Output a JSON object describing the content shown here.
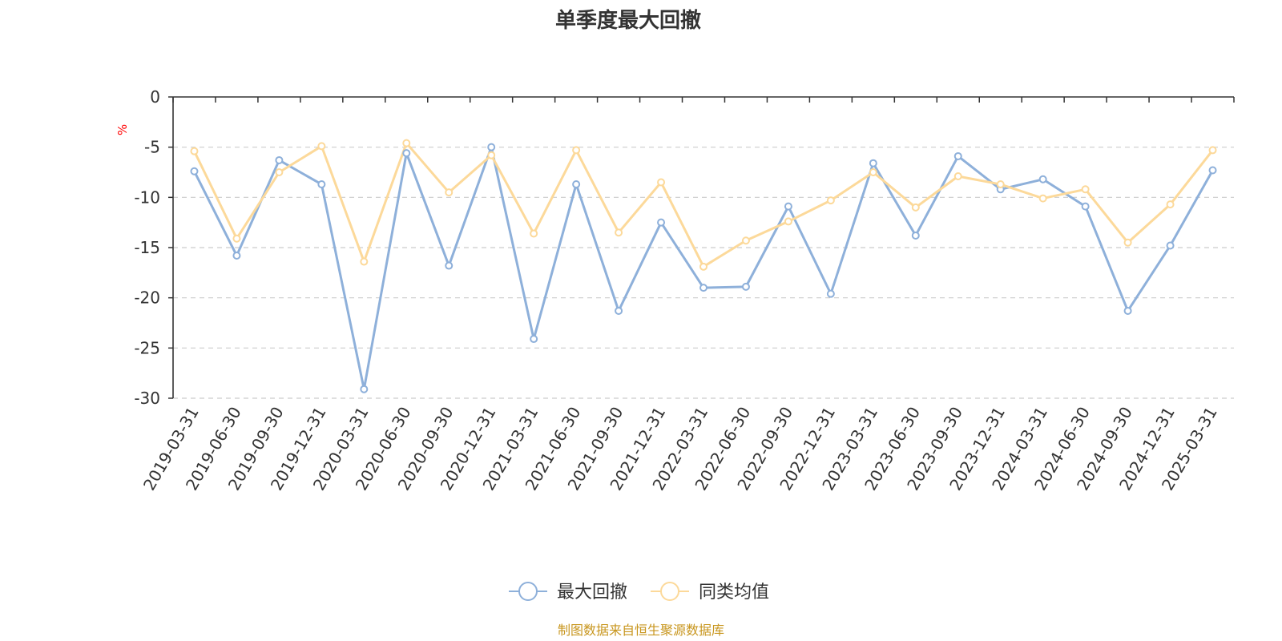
{
  "chart_data": {
    "type": "line",
    "title": "单季度最大回撤",
    "ylabel": "%",
    "ylim": [
      -30,
      0
    ],
    "yticks": [
      0,
      -5,
      -10,
      -15,
      -20,
      -25,
      -30
    ],
    "grid": true,
    "legend_position": "bottom-center",
    "categories": [
      "2019-03-31",
      "2019-06-30",
      "2019-09-30",
      "2019-12-31",
      "2020-03-31",
      "2020-06-30",
      "2020-09-30",
      "2020-12-31",
      "2021-03-31",
      "2021-06-30",
      "2021-09-30",
      "2021-12-31",
      "2022-03-31",
      "2022-06-30",
      "2022-09-30",
      "2022-12-31",
      "2023-03-31",
      "2023-06-30",
      "2023-09-30",
      "2023-12-31",
      "2024-03-31",
      "2024-06-30",
      "2024-09-30",
      "2024-12-31",
      "2025-03-31"
    ],
    "series": [
      {
        "name": "最大回撤",
        "color": "#8eb0da",
        "values": [
          -7.4,
          -15.8,
          -6.3,
          -8.7,
          -29.1,
          -5.6,
          -16.8,
          -5.0,
          -24.1,
          -8.7,
          -21.3,
          -12.5,
          -19.0,
          -18.9,
          -10.9,
          -19.6,
          -6.6,
          -13.8,
          -5.9,
          -9.2,
          -8.2,
          -10.9,
          -21.3,
          -14.8,
          -7.3
        ]
      },
      {
        "name": "同类均值",
        "color": "#fcd99a",
        "values": [
          -5.4,
          -14.1,
          -7.5,
          -4.9,
          -16.4,
          -4.6,
          -9.5,
          -5.8,
          -13.6,
          -5.3,
          -13.5,
          -8.5,
          -16.9,
          -14.3,
          -12.4,
          -10.3,
          -7.5,
          -11.0,
          -7.9,
          -8.7,
          -10.1,
          -9.2,
          -14.5,
          -10.7,
          -5.3
        ]
      }
    ]
  },
  "source": "制图数据来自恒生聚源数据库"
}
